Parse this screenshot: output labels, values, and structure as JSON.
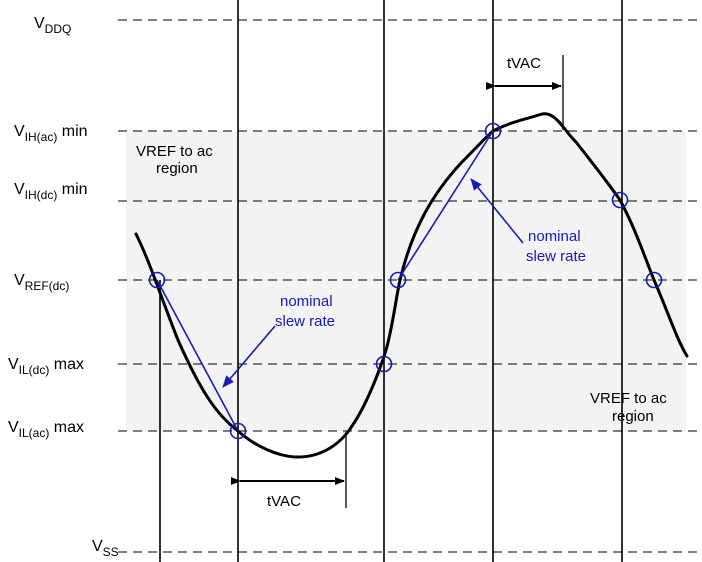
{
  "levels": {
    "vddq": {
      "main": "V",
      "sub": "DDQ",
      "suffix": ""
    },
    "vih_ac": {
      "main": "V",
      "sub": "IH(ac)",
      "suffix": " min"
    },
    "vih_dc": {
      "main": "V",
      "sub": "IH(dc)",
      "suffix": " min"
    },
    "vref_dc": {
      "main": "V",
      "sub": "REF(dc)",
      "suffix": ""
    },
    "vil_dc": {
      "main": "V",
      "sub": "IL(dc)",
      "suffix": " max"
    },
    "vil_ac": {
      "main": "V",
      "sub": "IL(ac)",
      "suffix": " max"
    },
    "vss": {
      "main": "V",
      "sub": "SS",
      "suffix": ""
    }
  },
  "annotations": {
    "vref_ac_upper": [
      "VREF to ac",
      "region"
    ],
    "vref_ac_lower": [
      "VREF to ac",
      "region"
    ],
    "nominal_left": [
      "nominal",
      "slew rate"
    ],
    "nominal_right": [
      "nominal",
      "slew rate"
    ],
    "tvac_top": "tVAC",
    "tvac_bottom": "tVAC"
  },
  "colors": {
    "signal": "#000000",
    "slew_line": "#1a1ab4",
    "marker": "#1a1ab4",
    "region_fill": "#f3f3f3",
    "annotation_blue": "#1a1ab4"
  }
}
